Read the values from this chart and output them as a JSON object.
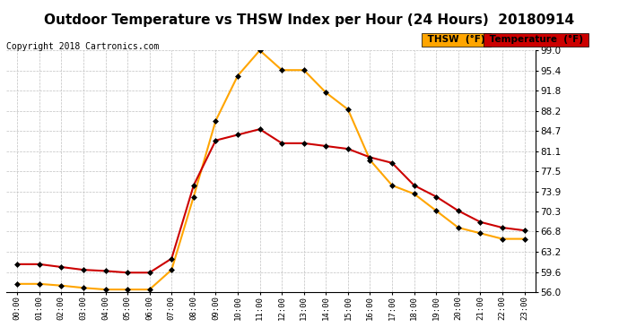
{
  "title": "Outdoor Temperature vs THSW Index per Hour (24 Hours)  20180914",
  "copyright": "Copyright 2018 Cartronics.com",
  "hours": [
    "00:00",
    "01:00",
    "02:00",
    "03:00",
    "04:00",
    "05:00",
    "06:00",
    "07:00",
    "08:00",
    "09:00",
    "10:00",
    "11:00",
    "12:00",
    "13:00",
    "14:00",
    "15:00",
    "16:00",
    "17:00",
    "18:00",
    "19:00",
    "20:00",
    "21:00",
    "22:00",
    "23:00"
  ],
  "thsw": [
    57.5,
    57.5,
    57.2,
    56.8,
    56.5,
    56.5,
    56.5,
    60.0,
    73.0,
    86.5,
    94.5,
    99.0,
    95.5,
    95.5,
    91.5,
    88.5,
    79.5,
    75.0,
    73.5,
    70.5,
    67.5,
    66.5,
    65.5,
    65.5
  ],
  "temperature": [
    61.0,
    61.0,
    60.5,
    60.0,
    59.8,
    59.5,
    59.5,
    62.0,
    75.0,
    83.0,
    84.0,
    85.0,
    82.5,
    82.5,
    82.0,
    81.5,
    80.0,
    79.0,
    75.0,
    73.0,
    70.5,
    68.5,
    67.5,
    67.0
  ],
  "thsw_color": "#FFA500",
  "temp_color": "#CC0000",
  "ylim_min": 56.0,
  "ylim_max": 99.0,
  "yticks": [
    56.0,
    59.6,
    63.2,
    66.8,
    70.3,
    73.9,
    77.5,
    81.1,
    84.7,
    88.2,
    91.8,
    95.4,
    99.0
  ],
  "background_color": "#ffffff",
  "grid_color": "#c0c0c0",
  "title_fontsize": 11,
  "copyright_fontsize": 7,
  "legend_thsw_label": "THSW  (°F)",
  "legend_temp_label": "Temperature  (°F)",
  "thsw_legend_bg": "#FFA500",
  "temp_legend_bg": "#CC0000"
}
